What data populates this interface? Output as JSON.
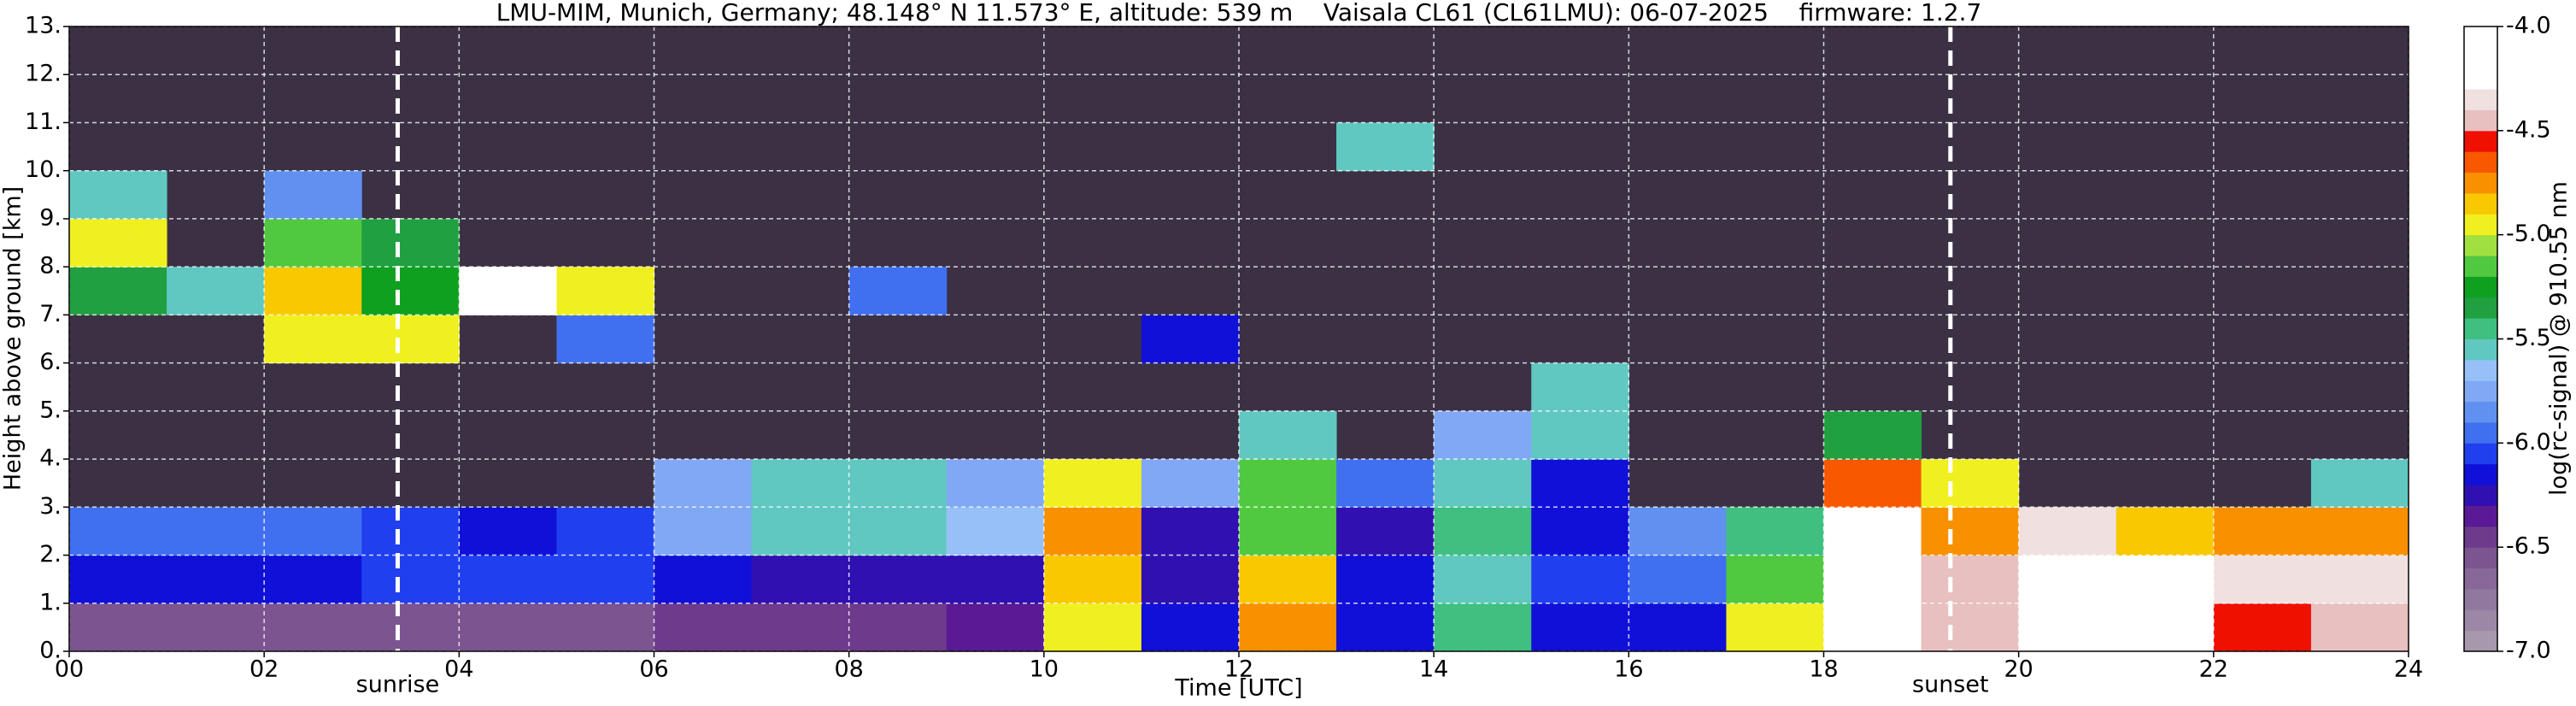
{
  "chart_data": {
    "type": "heatmap",
    "title": "LMU-MIM, Munich, Germany; 48.148° N 11.573° E, altitude: 539 m    Vaisala CL61 (CL61LMU): 06-07-2025    firmware: 1.2.7",
    "xlabel": "Time [UTC]",
    "ylabel": "Height above ground [km]",
    "colorbar_label": "log(rc-signal) @ 910.55 nm",
    "xlim": [
      0,
      24
    ],
    "ylim": [
      0,
      13
    ],
    "xticks": [
      {
        "value": 0,
        "label": "00"
      },
      {
        "value": 2,
        "label": "02"
      },
      {
        "value": 4,
        "label": "04"
      },
      {
        "value": 6,
        "label": "06"
      },
      {
        "value": 8,
        "label": "08"
      },
      {
        "value": 10,
        "label": "10"
      },
      {
        "value": 12,
        "label": "12"
      },
      {
        "value": 14,
        "label": "14"
      },
      {
        "value": 16,
        "label": "16"
      },
      {
        "value": 18,
        "label": "18"
      },
      {
        "value": 20,
        "label": "20"
      },
      {
        "value": 22,
        "label": "22"
      },
      {
        "value": 24,
        "label": "24"
      }
    ],
    "yticks": [
      {
        "value": 0,
        "label": "0."
      },
      {
        "value": 1,
        "label": "1."
      },
      {
        "value": 2,
        "label": "2."
      },
      {
        "value": 3,
        "label": "3."
      },
      {
        "value": 4,
        "label": "4."
      },
      {
        "value": 5,
        "label": "5."
      },
      {
        "value": 6,
        "label": "6."
      },
      {
        "value": 7,
        "label": "7."
      },
      {
        "value": 8,
        "label": "8."
      },
      {
        "value": 9,
        "label": "9."
      },
      {
        "value": 10,
        "label": "10."
      },
      {
        "value": 11,
        "label": "11."
      },
      {
        "value": 12,
        "label": "12."
      },
      {
        "value": 13,
        "label": "13."
      }
    ],
    "grid": true,
    "background": "#3b3044",
    "clim": [
      -7,
      -4
    ],
    "colorbar_ticks": [
      {
        "value": -4,
        "label": "-4.0"
      },
      {
        "value": -4.5,
        "label": "-4.5"
      },
      {
        "value": -5,
        "label": "-5.0"
      },
      {
        "value": -5.5,
        "label": "-5.5"
      },
      {
        "value": -6,
        "label": "-6.0"
      },
      {
        "value": -6.5,
        "label": "-6.5"
      },
      {
        "value": -7,
        "label": "-7.0"
      }
    ],
    "colormap": [
      "#a898ae",
      "#9c88a6",
      "#90789e",
      "#886898",
      "#7c5490",
      "#6e3a8c",
      "#5a1a96",
      "#3010b0",
      "#1010d8",
      "#2040f0",
      "#4070f0",
      "#6090f0",
      "#80a8f4",
      "#98c0f8",
      "#60c8c0",
      "#40c080",
      "#20a040",
      "#10a020",
      "#50c840",
      "#a0e040",
      "#f0f020",
      "#f8c800",
      "#f89000",
      "#f85800",
      "#f01000",
      "#e8c0c0",
      "#f0e0e0",
      "#ffffff",
      "#ffffff",
      "#ffffff"
    ],
    "x": [
      0.5,
      1.5,
      2.5,
      3.5,
      4.5,
      5.5,
      6.5,
      7.5,
      8.5,
      9.5,
      10.5,
      11.5,
      12.5,
      13.5,
      14.5,
      15.5,
      16.5,
      17.5,
      18.5,
      19.5,
      20.5,
      21.5,
      22.5,
      23.5
    ],
    "y": [
      0.5,
      1.5,
      2.5,
      3.5,
      4.5,
      5.5,
      6.5,
      7.5,
      8.5,
      9.5,
      10.5,
      11.5,
      12.5
    ],
    "z": [
      [
        -6.6,
        -6.6,
        -6.6,
        -6.6,
        -6.6,
        -6.6,
        -6.5,
        -6.5,
        -6.5,
        -6.4,
        -5.0,
        -6.2,
        -4.8,
        -6.2,
        -5.5,
        -6.2,
        -6.2,
        -5.0,
        -4.3,
        -4.5,
        -4.2,
        -4.3,
        -4.6,
        -4.5
      ],
      [
        -6.2,
        -6.2,
        -6.2,
        -6.1,
        -6.1,
        -6.1,
        -6.2,
        -6.3,
        -6.3,
        -6.3,
        -4.9,
        -6.3,
        -4.9,
        -6.2,
        -5.6,
        -6.1,
        -6.0,
        -5.2,
        -4.2,
        -4.5,
        -4.2,
        -4.2,
        -4.4,
        -4.4
      ],
      [
        -6.0,
        -6.0,
        -6.0,
        -6.1,
        -6.2,
        -6.1,
        -5.8,
        -5.6,
        -5.6,
        -5.7,
        -4.8,
        -6.3,
        -5.2,
        -6.3,
        -5.5,
        -6.2,
        -5.9,
        -5.5,
        -4.3,
        -4.8,
        -4.4,
        -4.9,
        -4.8,
        -4.8
      ],
      [
        null,
        null,
        null,
        null,
        null,
        null,
        -5.8,
        -5.6,
        -5.6,
        -5.8,
        -5.0,
        -5.8,
        -5.2,
        -6.0,
        -5.6,
        -6.2,
        null,
        null,
        -4.7,
        -5.0,
        null,
        null,
        null,
        -5.6
      ],
      [
        null,
        null,
        null,
        null,
        null,
        null,
        null,
        null,
        null,
        null,
        null,
        null,
        -5.6,
        null,
        -5.8,
        -5.6,
        null,
        null,
        -5.4,
        null,
        null,
        null,
        null,
        null
      ],
      [
        null,
        null,
        null,
        null,
        null,
        null,
        null,
        null,
        null,
        null,
        null,
        null,
        null,
        null,
        null,
        -5.6,
        null,
        null,
        null,
        null,
        null,
        null,
        null,
        null
      ],
      [
        null,
        null,
        -5.0,
        -5.0,
        null,
        -6.0,
        null,
        null,
        null,
        null,
        null,
        -6.2,
        null,
        null,
        null,
        null,
        null,
        null,
        null,
        null,
        null,
        null,
        null,
        null
      ],
      [
        -5.4,
        -5.6,
        -4.9,
        -5.3,
        -4.3,
        -5.0,
        null,
        null,
        -6.0,
        null,
        null,
        null,
        null,
        null,
        null,
        null,
        null,
        null,
        null,
        null,
        null,
        null,
        null,
        null
      ],
      [
        -5.0,
        null,
        -5.2,
        -5.4,
        null,
        null,
        null,
        null,
        null,
        null,
        null,
        null,
        null,
        null,
        null,
        null,
        null,
        null,
        null,
        null,
        null,
        null,
        null,
        null
      ],
      [
        -5.6,
        null,
        -5.9,
        null,
        null,
        null,
        null,
        null,
        null,
        null,
        null,
        null,
        null,
        null,
        null,
        null,
        null,
        null,
        null,
        null,
        null,
        null,
        null,
        null
      ],
      [
        null,
        null,
        null,
        null,
        null,
        null,
        null,
        null,
        null,
        null,
        null,
        null,
        null,
        -5.6,
        null,
        null,
        null,
        null,
        null,
        null,
        null,
        null,
        null,
        null
      ],
      [
        null,
        null,
        null,
        null,
        null,
        null,
        null,
        null,
        null,
        null,
        null,
        null,
        null,
        null,
        null,
        null,
        null,
        null,
        null,
        null,
        null,
        null,
        null,
        null
      ],
      [
        null,
        null,
        null,
        null,
        null,
        null,
        null,
        null,
        null,
        null,
        null,
        null,
        null,
        null,
        null,
        null,
        null,
        null,
        null,
        null,
        null,
        null,
        null,
        null
      ]
    ],
    "annotations": [
      {
        "text": "sunrise",
        "x": 3.37
      },
      {
        "text": "sunset",
        "x": 19.3
      }
    ]
  }
}
